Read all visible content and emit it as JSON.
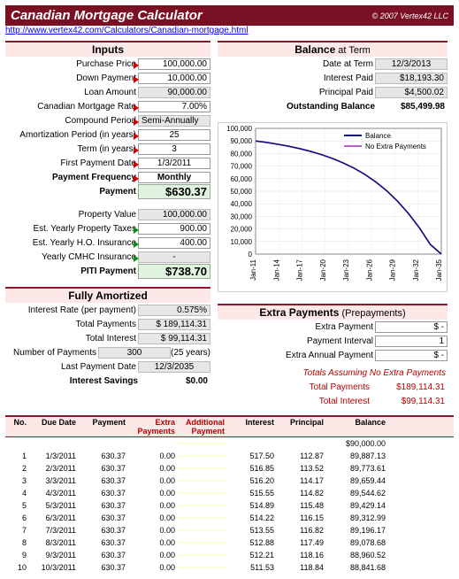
{
  "header": {
    "title": "Canadian Mortgage Calculator",
    "copyright": "© 2007 Vertex42 LLC",
    "url": "http://www.vertex42.com/Calculators/Canadian-mortgage.html"
  },
  "inputs": {
    "heading": "Inputs",
    "items": [
      {
        "label": "Purchase Price",
        "value": "100,000.00",
        "type": "in",
        "tri": "r"
      },
      {
        "label": "Down Payment",
        "value": "10,000.00",
        "type": "in",
        "tri": "r"
      },
      {
        "label": "Loan Amount",
        "value": "90,000.00",
        "type": "gy",
        "tri": ""
      },
      {
        "label": "Canadian Mortgage Rate",
        "value": "7.00%",
        "type": "in",
        "tri": "r"
      },
      {
        "label": "Compound Period",
        "value": "Semi-Annually",
        "type": "gy",
        "tri": "r",
        "left": true
      },
      {
        "label": "Amortization Period (in years)",
        "value": "25",
        "type": "in",
        "tri": "r",
        "center": true
      },
      {
        "label": "Term (in years)",
        "value": "3",
        "type": "in",
        "tri": "r",
        "center": true
      },
      {
        "label": "First Payment Date",
        "value": "1/3/2011",
        "type": "in",
        "tri": "r",
        "center": true
      },
      {
        "label": "Payment Frequency",
        "value": "Monthly",
        "type": "in",
        "tri": "r",
        "bold": true,
        "center": true
      },
      {
        "label": "Payment",
        "value": "$630.37",
        "type": "gn",
        "tri": "",
        "bold": true
      }
    ]
  },
  "piti": {
    "items": [
      {
        "label": "Property Value",
        "value": "100,000.00",
        "type": "gy",
        "tri": ""
      },
      {
        "label": "Est. Yearly Property Taxes",
        "value": "900.00",
        "type": "in",
        "tri": "g"
      },
      {
        "label": "Est. Yearly H.O. Insurance",
        "value": "400.00",
        "type": "in",
        "tri": "g"
      },
      {
        "label": "Yearly CMHC Insurance",
        "value": "-",
        "type": "gy",
        "tri": "g",
        "center": true
      },
      {
        "label": "PITI Payment",
        "value": "$738.70",
        "type": "gn",
        "tri": "",
        "bold": true
      }
    ]
  },
  "amortized": {
    "heading": "Fully Amortized",
    "items": [
      {
        "label": "Interest Rate (per payment)",
        "value": "0.575%",
        "type": "gy"
      },
      {
        "label": "Total Payments",
        "value": "$ 189,114.31",
        "type": "gy"
      },
      {
        "label": "Total Interest",
        "value": "$   99,114.31",
        "type": "gy"
      },
      {
        "label": "Number of Payments",
        "value": "300",
        "type": "gy",
        "note": "(25 years)",
        "center": true
      },
      {
        "label": "Last Payment Date",
        "value": "12/3/2035",
        "type": "gy",
        "center": true
      },
      {
        "label": "Interest Savings",
        "value": "$0.00",
        "type": "",
        "bold": true
      }
    ]
  },
  "balance": {
    "heading": "Balance",
    "sub": " at Term",
    "items": [
      {
        "label": "Date at Term",
        "value": "12/3/2013",
        "type": "gy",
        "center": true
      },
      {
        "label": "Interest Paid",
        "value": "$18,193.30",
        "type": "gy"
      },
      {
        "label": "Principal Paid",
        "value": "$4,500.02",
        "type": "gy"
      },
      {
        "label": "Outstanding Balance",
        "value": "$85,499.98",
        "type": "",
        "bold": true
      }
    ]
  },
  "chart": {
    "ylim": [
      0,
      100000
    ],
    "ytick": 10000,
    "xlabels": [
      "Jan-11",
      "Jan-14",
      "Jan-17",
      "Jan-20",
      "Jan-23",
      "Jan-26",
      "Jan-29",
      "Jan-32",
      "Jan-35"
    ],
    "series": [
      {
        "name": "Balance",
        "color": "#10107a"
      },
      {
        "name": "No Extra Payments",
        "color": "#c060d0"
      }
    ],
    "data": [
      90000,
      88800,
      87400,
      85800,
      84000,
      81800,
      79200,
      76200,
      72600,
      68400,
      63400,
      57400,
      50400,
      42000,
      32200,
      20800,
      7600,
      0
    ]
  },
  "extra": {
    "heading": "Extra Payments",
    "sub": " (Prepayments)",
    "items": [
      {
        "label": "Extra Payment",
        "value": "$                -",
        "type": "in"
      },
      {
        "label": "Payment Interval",
        "value": "1",
        "type": "in"
      },
      {
        "label": "Extra Annual Payment",
        "value": "$                -",
        "type": "in"
      }
    ],
    "totals_h": "Totals Assuming No Extra Payments",
    "totals": [
      {
        "label": "Total Payments",
        "value": "$189,114.31"
      },
      {
        "label": "Total Interest",
        "value": "$99,114.31"
      }
    ]
  },
  "table": {
    "headers": [
      "No.",
      "Due Date",
      "Payment",
      "Extra Payments",
      "Additional Payment",
      "Interest",
      "Principal",
      "Balance"
    ],
    "start_balance": "$90,000.00",
    "rows": [
      [
        "1",
        "1/3/2011",
        "630.37",
        "0.00",
        "",
        "517.50",
        "112.87",
        "89,887.13"
      ],
      [
        "2",
        "2/3/2011",
        "630.37",
        "0.00",
        "",
        "516.85",
        "113.52",
        "89,773.61"
      ],
      [
        "3",
        "3/3/2011",
        "630.37",
        "0.00",
        "",
        "516.20",
        "114.17",
        "89,659.44"
      ],
      [
        "4",
        "4/3/2011",
        "630.37",
        "0.00",
        "",
        "515.55",
        "114.82",
        "89,544.62"
      ],
      [
        "5",
        "5/3/2011",
        "630.37",
        "0.00",
        "",
        "514.89",
        "115.48",
        "89,429.14"
      ],
      [
        "6",
        "6/3/2011",
        "630.37",
        "0.00",
        "",
        "514.22",
        "116.15",
        "89,312.99"
      ],
      [
        "7",
        "7/3/2011",
        "630.37",
        "0.00",
        "",
        "513.55",
        "116.82",
        "89,196.17"
      ],
      [
        "8",
        "8/3/2011",
        "630.37",
        "0.00",
        "",
        "512.88",
        "117.49",
        "89,078.68"
      ],
      [
        "9",
        "9/3/2011",
        "630.37",
        "0.00",
        "",
        "512.21",
        "118.16",
        "88,960.52"
      ],
      [
        "10",
        "10/3/2011",
        "630.37",
        "0.00",
        "",
        "511.53",
        "118.84",
        "88,841.68"
      ]
    ]
  }
}
